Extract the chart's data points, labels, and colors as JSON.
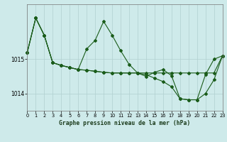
{
  "title": "Graphe pression niveau de la mer (hPa)",
  "bg": "#ceeaea",
  "grid_color": "#b0d0d0",
  "lc": "#1a5c1a",
  "xlim": [
    0,
    23
  ],
  "ylim": [
    1013.5,
    1016.6
  ],
  "yticks": [
    1014.0,
    1015.0
  ],
  "xticks": [
    0,
    1,
    2,
    3,
    4,
    5,
    6,
    7,
    8,
    9,
    10,
    11,
    12,
    13,
    14,
    15,
    16,
    17,
    18,
    19,
    20,
    21,
    22,
    23
  ],
  "s1_x": [
    0,
    1,
    2,
    3,
    4,
    5,
    6,
    7,
    8,
    9,
    10,
    11,
    12,
    13,
    14,
    15,
    16,
    17,
    18,
    19,
    20,
    21,
    22,
    23
  ],
  "s1_y": [
    1015.2,
    1016.2,
    1015.7,
    1014.9,
    1014.82,
    1014.76,
    1014.7,
    1014.68,
    1014.65,
    1014.62,
    1014.6,
    1014.6,
    1014.6,
    1014.6,
    1014.6,
    1014.6,
    1014.6,
    1014.6,
    1014.6,
    1014.6,
    1014.6,
    1014.6,
    1014.6,
    1015.1
  ],
  "s2_x": [
    0,
    1,
    2,
    3,
    4,
    5,
    6,
    7,
    8,
    9,
    10,
    11,
    12,
    13,
    14,
    15,
    16,
    17,
    18,
    19,
    20,
    21,
    22,
    23
  ],
  "s2_y": [
    1015.2,
    1016.2,
    1015.7,
    1014.9,
    1014.82,
    1014.76,
    1014.7,
    1015.3,
    1015.55,
    1016.1,
    1015.7,
    1015.25,
    1014.85,
    1014.6,
    1014.5,
    1014.62,
    1014.7,
    1014.52,
    1013.85,
    1013.82,
    1013.82,
    1014.55,
    1015.0,
    1015.1
  ],
  "s3_x": [
    0,
    1,
    2,
    3,
    4,
    5,
    6,
    7,
    8,
    9,
    10,
    11,
    12,
    13,
    14,
    15,
    16,
    17,
    18,
    19,
    20,
    21,
    22,
    23
  ],
  "s3_y": [
    1015.2,
    1016.2,
    1015.7,
    1014.9,
    1014.82,
    1014.76,
    1014.7,
    1014.68,
    1014.65,
    1014.62,
    1014.6,
    1014.6,
    1014.6,
    1014.6,
    1014.55,
    1014.45,
    1014.35,
    1014.2,
    1013.85,
    1013.82,
    1013.82,
    1014.0,
    1014.4,
    1015.1
  ]
}
